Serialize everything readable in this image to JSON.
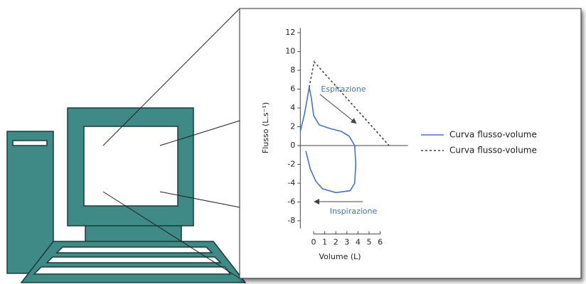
{
  "chart_data": {
    "type": "line",
    "x_label": "Volume (L)",
    "y_label": "Flusso (L.s⁻¹)",
    "xlim": [
      -1.2,
      8.5
    ],
    "ylim": [
      -8.8,
      12.5
    ],
    "xticks": [
      0,
      1,
      2,
      3,
      4,
      5,
      6
    ],
    "yticks": [
      -8,
      -6,
      -4,
      -2,
      0,
      2,
      4,
      6,
      8,
      10,
      12
    ],
    "annotations": [
      "Espirazione",
      "Inspirazione"
    ],
    "series": [
      {
        "name": "Curva flusso-volume",
        "color": "#4a72b8",
        "dash": false,
        "x": [
          -1.2,
          -0.8,
          -0.4,
          -0.2,
          0,
          0.5,
          1.5,
          2.5,
          3.2,
          3.7,
          3.8,
          3.7,
          3.3,
          2.0,
          0.8,
          0.2,
          -0.3,
          -0.7
        ],
        "values": [
          1.5,
          3.5,
          6.2,
          5,
          3.2,
          2.2,
          1.8,
          1.5,
          1.0,
          0,
          -2,
          -4,
          -4.8,
          -5.0,
          -4.6,
          -3.8,
          -2.5,
          -0.6
        ]
      },
      {
        "name": "Curva flusso-volume",
        "color": "#444444",
        "dash": true,
        "x": [
          -0.4,
          0.05,
          6.8
        ],
        "values": [
          6.2,
          8.9,
          0
        ]
      }
    ]
  }
}
